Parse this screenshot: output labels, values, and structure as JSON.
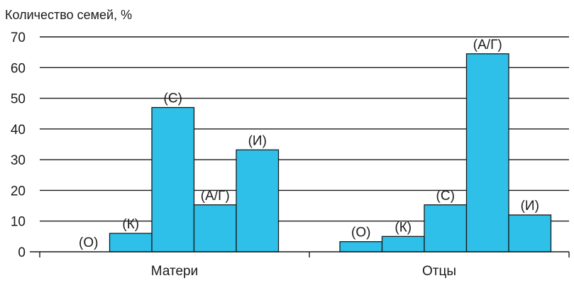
{
  "chart_data": {
    "type": "bar",
    "title": "Количество семей, %",
    "xlabel": "",
    "ylabel": "",
    "ylim": [
      0,
      70
    ],
    "yticks": [
      0,
      10,
      20,
      30,
      40,
      50,
      60,
      70
    ],
    "grid": true,
    "bar_color": "#2ec0e8",
    "groups": [
      {
        "name": "Матери",
        "bars": [
          {
            "label": "(О)",
            "value": 0
          },
          {
            "label": "(К)",
            "value": 6
          },
          {
            "label": "(С)",
            "value": 47
          },
          {
            "label": "(А/Г)",
            "value": 15.3
          },
          {
            "label": "(И)",
            "value": 33.2
          }
        ]
      },
      {
        "name": "Отцы",
        "bars": [
          {
            "label": "(О)",
            "value": 3.3
          },
          {
            "label": "(К)",
            "value": 5
          },
          {
            "label": "(С)",
            "value": 15.3
          },
          {
            "label": "(А/Г)",
            "value": 64.5
          },
          {
            "label": "(И)",
            "value": 12
          }
        ]
      }
    ]
  }
}
